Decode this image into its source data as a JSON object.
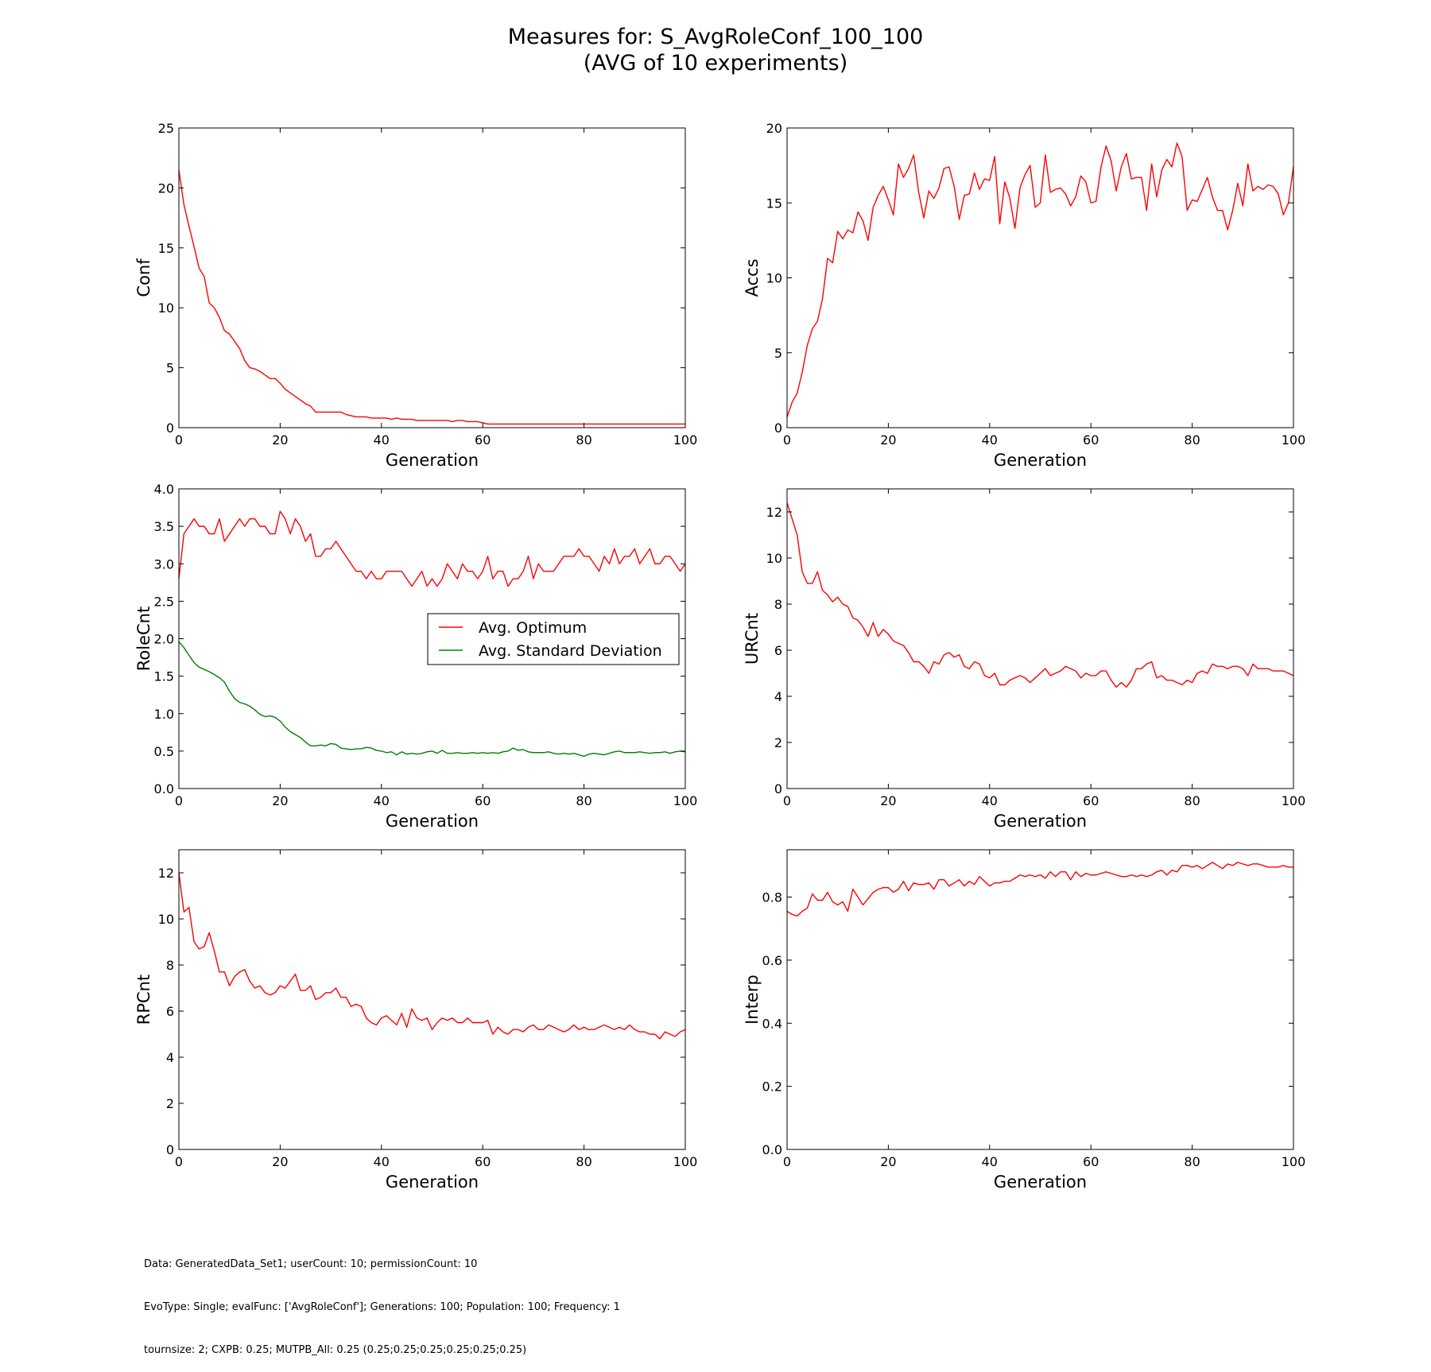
{
  "figure": {
    "title_line1": "Measures for: S_AvgRoleConf_100_100",
    "title_line2": "(AVG of 10 experiments)"
  },
  "footer": {
    "line1": "Data: GeneratedData_Set1; userCount: 10; permissionCount: 10",
    "line2": "EvoType: Single; evalFunc: ['AvgRoleConf']; Generations: 100; Population: 100; Frequency: 1",
    "line3": "tournsize: 2; CXPB: 0.25; MUTPB_All: 0.25 (0.25;0.25;0.25;0.25;0.25;0.25)"
  },
  "colors": {
    "optimum": "#ff0000",
    "std": "#008000"
  },
  "chart_data": [
    {
      "type": "line",
      "xlabel": "Generation",
      "ylabel": "Conf",
      "xlim": [
        0,
        100
      ],
      "ylim": [
        0,
        25
      ],
      "xticks": [
        "0",
        "20",
        "40",
        "60",
        "80",
        "100"
      ],
      "yticks": [
        "0",
        "5",
        "10",
        "15",
        "20",
        "25"
      ],
      "series": [
        {
          "color": "#ff0000",
          "x_start": 0,
          "x_step": 1,
          "values": [
            21.5,
            18.6,
            16.8,
            15.1,
            13.3,
            12.6,
            10.4,
            10,
            9.2,
            8.1,
            7.8,
            7.2,
            6.6,
            5.6,
            5,
            4.9,
            4.7,
            4.4,
            4.1,
            4.1,
            3.7,
            3.2,
            2.9,
            2.6,
            2.3,
            2,
            1.8,
            1.3,
            1.3,
            1.3,
            1.3,
            1.3,
            1.3,
            1.1,
            1,
            0.9,
            0.9,
            0.9,
            0.8,
            0.8,
            0.8,
            0.8,
            0.7,
            0.8,
            0.7,
            0.7,
            0.7,
            0.6,
            0.6,
            0.6,
            0.6,
            0.6,
            0.6,
            0.6,
            0.5,
            0.6,
            0.6,
            0.5,
            0.5,
            0.5,
            0.4,
            0.3,
            0.3,
            0.3,
            0.3,
            0.3,
            0.3,
            0.3,
            0.3,
            0.3,
            0.3,
            0.3,
            0.3,
            0.3,
            0.3,
            0.3,
            0.3,
            0.3,
            0.3,
            0.3,
            0.3,
            0.3,
            0.3,
            0.3,
            0.3,
            0.3,
            0.3,
            0.3,
            0.3,
            0.3,
            0.3,
            0.3,
            0.3,
            0.3,
            0.3,
            0.3,
            0.3,
            0.3,
            0.3,
            0.3,
            0.3
          ]
        }
      ]
    },
    {
      "type": "line",
      "xlabel": "Generation",
      "ylabel": "Accs",
      "xlim": [
        0,
        100
      ],
      "ylim": [
        0,
        20
      ],
      "xticks": [
        "0",
        "20",
        "40",
        "60",
        "80",
        "100"
      ],
      "yticks": [
        "0",
        "5",
        "10",
        "15",
        "20"
      ],
      "series": [
        {
          "color": "#ff0000",
          "x_start": 0,
          "x_step": 1,
          "values": [
            0.7,
            1.7,
            2.3,
            3.7,
            5.5,
            6.6,
            7.1,
            8.6,
            11.3,
            11,
            13.1,
            12.6,
            13.2,
            13,
            14.4,
            13.8,
            12.5,
            14.7,
            15.5,
            16.1,
            15.2,
            14.2,
            17.6,
            16.7,
            17.3,
            18.2,
            15.7,
            14,
            15.8,
            15.3,
            16,
            17.3,
            17.4,
            16.1,
            13.9,
            15.5,
            15.6,
            17,
            15.9,
            16.6,
            16.5,
            18.1,
            13.6,
            16.4,
            15.3,
            13.3,
            16,
            16.9,
            17.5,
            14.7,
            15,
            18.2,
            15.7,
            15.9,
            16,
            15.6,
            14.8,
            15.4,
            16.8,
            16.4,
            15,
            15.1,
            17.4,
            18.8,
            17.8,
            15.8,
            17.4,
            18.3,
            16.6,
            16.7,
            16.7,
            14.5,
            17.6,
            15.4,
            17.2,
            17.9,
            17.4,
            19,
            18.1,
            14.5,
            15.2,
            15.1,
            15.9,
            16.7,
            15.4,
            14.5,
            14.5,
            13.2,
            14.5,
            16.3,
            14.8,
            17.6,
            15.8,
            16.1,
            15.9,
            16.2,
            16.1,
            15.6,
            14.2,
            15,
            17.4
          ]
        }
      ]
    },
    {
      "type": "line",
      "xlabel": "Generation",
      "ylabel": "RoleCnt",
      "xlim": [
        0,
        100
      ],
      "ylim": [
        0,
        4
      ],
      "xticks": [
        "0",
        "20",
        "40",
        "60",
        "80",
        "100"
      ],
      "yticks": [
        "0.0",
        "0.5",
        "1.0",
        "1.5",
        "2.0",
        "2.5",
        "3.0",
        "3.5",
        "4.0"
      ],
      "legend": {
        "placement": "center-right",
        "entries": [
          "Avg. Optimum",
          "Avg. Standard Deviation"
        ]
      },
      "series": [
        {
          "name": "Avg. Optimum",
          "color": "#ff0000",
          "x_start": 0,
          "x_step": 1,
          "values": [
            2.8,
            3.4,
            3.5,
            3.6,
            3.5,
            3.5,
            3.4,
            3.4,
            3.6,
            3.3,
            3.4,
            3.5,
            3.6,
            3.5,
            3.6,
            3.6,
            3.5,
            3.5,
            3.4,
            3.4,
            3.7,
            3.6,
            3.4,
            3.6,
            3.5,
            3.3,
            3.4,
            3.1,
            3.1,
            3.2,
            3.2,
            3.3,
            3.2,
            3.1,
            3,
            2.9,
            2.9,
            2.8,
            2.9,
            2.8,
            2.8,
            2.9,
            2.9,
            2.9,
            2.9,
            2.8,
            2.7,
            2.8,
            2.9,
            2.7,
            2.8,
            2.7,
            2.8,
            3,
            2.9,
            2.8,
            3,
            2.9,
            2.9,
            2.8,
            2.9,
            3.1,
            2.8,
            2.9,
            2.9,
            2.7,
            2.8,
            2.8,
            2.9,
            3.1,
            2.8,
            3,
            2.9,
            2.9,
            2.9,
            3,
            3.1,
            3.1,
            3.1,
            3.2,
            3.1,
            3.1,
            3,
            2.9,
            3.1,
            3,
            3.2,
            3,
            3.1,
            3.1,
            3.2,
            3,
            3.1,
            3.2,
            3,
            3,
            3.1,
            3.1,
            3,
            2.9,
            3
          ]
        },
        {
          "name": "Avg. Standard Deviation",
          "color": "#008000",
          "x_start": 0,
          "x_step": 1,
          "values": [
            1.96,
            1.88,
            1.78,
            1.68,
            1.62,
            1.59,
            1.56,
            1.52,
            1.48,
            1.42,
            1.3,
            1.2,
            1.15,
            1.13,
            1.1,
            1.05,
            0.99,
            0.96,
            0.97,
            0.95,
            0.9,
            0.82,
            0.76,
            0.72,
            0.68,
            0.62,
            0.57,
            0.57,
            0.58,
            0.57,
            0.6,
            0.59,
            0.54,
            0.53,
            0.52,
            0.53,
            0.53,
            0.55,
            0.54,
            0.51,
            0.5,
            0.48,
            0.49,
            0.45,
            0.49,
            0.46,
            0.47,
            0.46,
            0.47,
            0.49,
            0.5,
            0.47,
            0.51,
            0.47,
            0.47,
            0.48,
            0.47,
            0.47,
            0.48,
            0.47,
            0.48,
            0.47,
            0.48,
            0.47,
            0.49,
            0.5,
            0.54,
            0.51,
            0.52,
            0.49,
            0.48,
            0.48,
            0.48,
            0.49,
            0.47,
            0.46,
            0.47,
            0.46,
            0.47,
            0.45,
            0.43,
            0.46,
            0.47,
            0.46,
            0.45,
            0.47,
            0.49,
            0.5,
            0.48,
            0.48,
            0.48,
            0.49,
            0.48,
            0.47,
            0.48,
            0.48,
            0.49,
            0.47,
            0.49,
            0.5,
            0.49
          ]
        }
      ]
    },
    {
      "type": "line",
      "xlabel": "Generation",
      "ylabel": "URCnt",
      "xlim": [
        0,
        100
      ],
      "ylim": [
        0,
        13
      ],
      "xticks": [
        "0",
        "20",
        "40",
        "60",
        "80",
        "100"
      ],
      "yticks": [
        "0",
        "2",
        "4",
        "6",
        "8",
        "10",
        "12"
      ],
      "series": [
        {
          "color": "#ff0000",
          "x_start": 0,
          "x_step": 1,
          "values": [
            12.4,
            11.7,
            11,
            9.4,
            8.9,
            8.9,
            9.4,
            8.6,
            8.4,
            8.1,
            8.3,
            8,
            7.9,
            7.4,
            7.3,
            7,
            6.6,
            7.2,
            6.6,
            6.9,
            6.7,
            6.4,
            6.3,
            6.2,
            5.9,
            5.5,
            5.5,
            5.3,
            5,
            5.5,
            5.4,
            5.8,
            5.9,
            5.7,
            5.8,
            5.3,
            5.2,
            5.5,
            5.4,
            4.9,
            4.8,
            5,
            4.5,
            4.5,
            4.7,
            4.8,
            4.9,
            4.8,
            4.6,
            4.8,
            5,
            5.2,
            4.9,
            5,
            5.1,
            5.3,
            5.2,
            5.1,
            4.8,
            5,
            4.9,
            4.9,
            5.1,
            5.1,
            4.7,
            4.4,
            4.6,
            4.4,
            4.7,
            5.2,
            5.2,
            5.4,
            5.5,
            4.8,
            4.9,
            4.7,
            4.7,
            4.6,
            4.5,
            4.7,
            4.6,
            5,
            5.1,
            5,
            5.4,
            5.3,
            5.3,
            5.2,
            5.3,
            5.3,
            5.2,
            4.9,
            5.4,
            5.2,
            5.2,
            5.2,
            5.1,
            5.1,
            5.1,
            5,
            4.9
          ]
        }
      ]
    },
    {
      "type": "line",
      "xlabel": "Generation",
      "ylabel": "RPCnt",
      "xlim": [
        0,
        100
      ],
      "ylim": [
        0,
        13
      ],
      "xticks": [
        "0",
        "20",
        "40",
        "60",
        "80",
        "100"
      ],
      "yticks": [
        "0",
        "2",
        "4",
        "6",
        "8",
        "10",
        "12"
      ],
      "series": [
        {
          "color": "#ff0000",
          "x_start": 0,
          "x_step": 1,
          "values": [
            12,
            10.3,
            10.5,
            9,
            8.7,
            8.8,
            9.4,
            8.6,
            7.7,
            7.7,
            7.1,
            7.5,
            7.7,
            7.8,
            7.3,
            7,
            7.1,
            6.8,
            6.7,
            6.8,
            7.1,
            7,
            7.3,
            7.6,
            6.9,
            6.9,
            7.1,
            6.5,
            6.6,
            6.8,
            6.8,
            7,
            6.6,
            6.6,
            6.2,
            6.3,
            6.2,
            5.7,
            5.5,
            5.4,
            5.7,
            5.8,
            5.6,
            5.4,
            5.9,
            5.3,
            6.1,
            5.7,
            5.6,
            5.7,
            5.2,
            5.5,
            5.7,
            5.6,
            5.7,
            5.5,
            5.5,
            5.7,
            5.5,
            5.5,
            5.5,
            5.6,
            5,
            5.3,
            5.1,
            5,
            5.2,
            5.2,
            5.1,
            5.3,
            5.4,
            5.2,
            5.2,
            5.4,
            5.3,
            5.2,
            5.1,
            5.2,
            5.4,
            5.2,
            5.3,
            5.2,
            5.2,
            5.3,
            5.4,
            5.3,
            5.2,
            5.3,
            5.2,
            5.4,
            5.2,
            5.1,
            5.1,
            5,
            5,
            4.8,
            5.1,
            5,
            4.9,
            5.1,
            5.2
          ]
        }
      ]
    },
    {
      "type": "line",
      "xlabel": "Generation",
      "ylabel": "Interp",
      "xlim": [
        0,
        100
      ],
      "ylim": [
        0,
        0.95
      ],
      "xticks": [
        "0",
        "20",
        "40",
        "60",
        "80",
        "100"
      ],
      "yticks": [
        "0.0",
        "0.2",
        "0.4",
        "0.6",
        "0.8"
      ],
      "series": [
        {
          "color": "#ff0000",
          "x_start": 0,
          "x_step": 1,
          "values": [
            0.755,
            0.745,
            0.74,
            0.755,
            0.765,
            0.81,
            0.79,
            0.79,
            0.815,
            0.785,
            0.775,
            0.785,
            0.755,
            0.825,
            0.8,
            0.775,
            0.795,
            0.815,
            0.825,
            0.83,
            0.83,
            0.815,
            0.825,
            0.85,
            0.82,
            0.845,
            0.84,
            0.84,
            0.845,
            0.825,
            0.855,
            0.855,
            0.835,
            0.845,
            0.855,
            0.835,
            0.85,
            0.84,
            0.865,
            0.85,
            0.835,
            0.845,
            0.845,
            0.85,
            0.85,
            0.86,
            0.87,
            0.865,
            0.87,
            0.865,
            0.87,
            0.86,
            0.88,
            0.865,
            0.88,
            0.88,
            0.855,
            0.88,
            0.865,
            0.875,
            0.87,
            0.87,
            0.875,
            0.88,
            0.875,
            0.87,
            0.865,
            0.865,
            0.87,
            0.865,
            0.87,
            0.865,
            0.87,
            0.88,
            0.885,
            0.87,
            0.885,
            0.88,
            0.9,
            0.9,
            0.895,
            0.9,
            0.89,
            0.9,
            0.91,
            0.9,
            0.89,
            0.905,
            0.9,
            0.91,
            0.905,
            0.9,
            0.905,
            0.905,
            0.9,
            0.895,
            0.895,
            0.895,
            0.9,
            0.895,
            0.895
          ]
        }
      ]
    }
  ]
}
